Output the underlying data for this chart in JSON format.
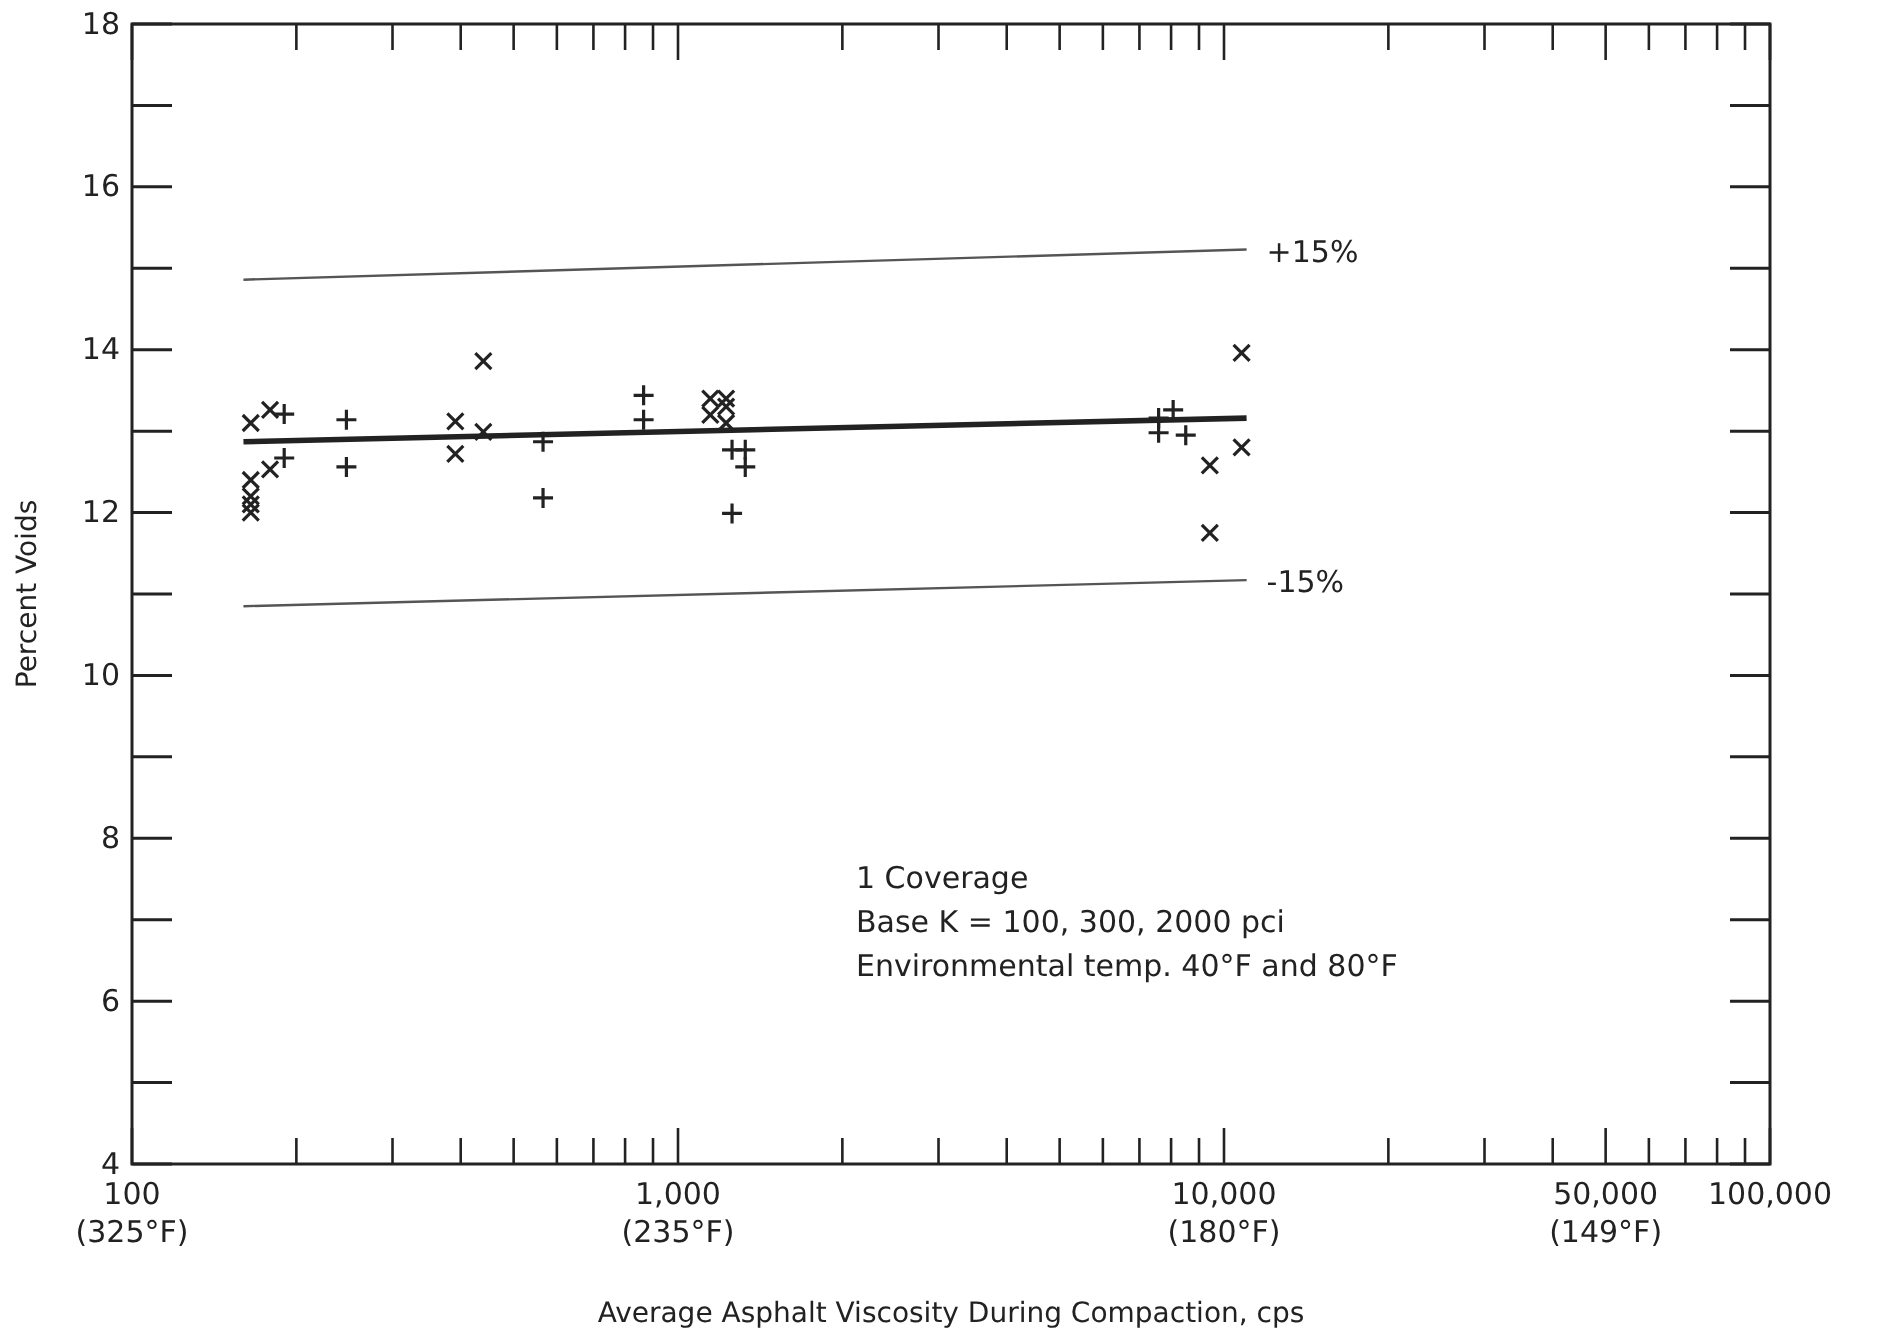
{
  "chart_data": {
    "type": "scatter",
    "xlabel": "Average Asphalt Viscosity During Compaction, cps",
    "ylabel": "Percent Voids",
    "log": "x",
    "grid": false,
    "xlim": [
      100,
      100000
    ],
    "ylim": [
      4,
      18
    ],
    "xticks": [
      {
        "value": 100,
        "label": "100"
      },
      {
        "value": 200,
        "label": null
      },
      {
        "value": 300,
        "label": null
      },
      {
        "value": 400,
        "label": null
      },
      {
        "value": 500,
        "label": null
      },
      {
        "value": 600,
        "label": null
      },
      {
        "value": 700,
        "label": null
      },
      {
        "value": 800,
        "label": null
      },
      {
        "value": 900,
        "label": null
      },
      {
        "value": 1000,
        "label": "1,000"
      },
      {
        "value": 2000,
        "label": null
      },
      {
        "value": 3000,
        "label": null
      },
      {
        "value": 4000,
        "label": null
      },
      {
        "value": 5000,
        "label": null
      },
      {
        "value": 6000,
        "label": null
      },
      {
        "value": 7000,
        "label": null
      },
      {
        "value": 8000,
        "label": null
      },
      {
        "value": 9000,
        "label": null
      },
      {
        "value": 10000,
        "label": "10,000"
      },
      {
        "value": 20000,
        "label": null
      },
      {
        "value": 30000,
        "label": null
      },
      {
        "value": 40000,
        "label": null
      },
      {
        "value": 50000,
        "label": "50,000"
      },
      {
        "value": 60000,
        "label": null
      },
      {
        "value": 70000,
        "label": null
      },
      {
        "value": 80000,
        "label": null
      },
      {
        "value": 90000,
        "label": null
      },
      {
        "value": 100000,
        "label": "100,000"
      }
    ],
    "yticks": [
      4,
      6,
      8,
      10,
      12,
      14,
      16,
      18
    ],
    "series": [
      {
        "type": "line",
        "color": "#222222",
        "x": [
          160,
          11000
        ],
        "values": [
          12.87,
          13.16
        ]
      },
      {
        "type": "line",
        "name": "+15%",
        "color": "#555555",
        "x": [
          160,
          11000
        ],
        "values": [
          14.86,
          15.23
        ]
      },
      {
        "type": "line",
        "name": "-15%",
        "color": "#555555",
        "x": [
          160,
          11000
        ],
        "values": [
          10.85,
          11.17
        ]
      },
      {
        "marker": "cross",
        "color": "#222222",
        "x": [
          165,
          165,
          165,
          165,
          165,
          179,
          179,
          391,
          391,
          440,
          440,
          1146,
          1146,
          1225,
          1225,
          1225,
          10770,
          10770,
          9420,
          9420
        ],
        "values": [
          13.1,
          12.4,
          12.2,
          12.1,
          12.0,
          13.26,
          12.53,
          13.12,
          12.72,
          12.99,
          13.86,
          13.4,
          13.2,
          13.4,
          13.3,
          13.1,
          13.96,
          12.8,
          12.58,
          11.75
        ]
      },
      {
        "marker": "plus",
        "color": "#222222",
        "x": [
          190,
          190,
          247,
          247,
          566,
          566,
          865,
          865,
          1256,
          1256,
          1328,
          1328,
          7590,
          7590,
          8070,
          8510
        ],
        "values": [
          13.21,
          12.67,
          13.14,
          12.56,
          12.87,
          12.18,
          13.44,
          13.14,
          12.77,
          11.99,
          12.77,
          12.56,
          13.16,
          12.98,
          13.26,
          12.95
        ]
      }
    ],
    "annotations": [
      "(325°F)",
      "(235°F)",
      "(180°F)",
      "(149°F)",
      "1 Coverage",
      "Base K = 100, 300, 2000 pci",
      "Environmental temp. 40°F and 80°F"
    ]
  }
}
